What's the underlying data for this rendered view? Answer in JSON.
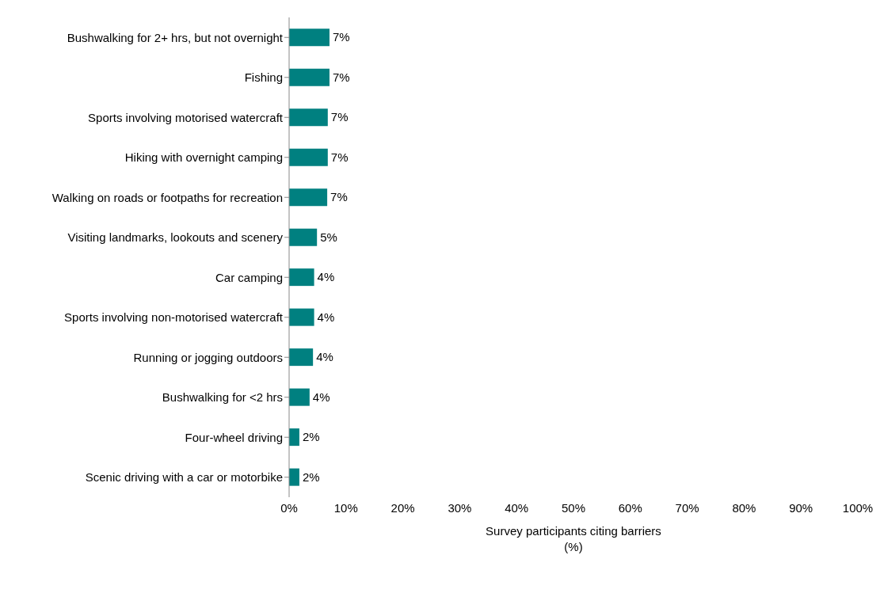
{
  "chart_data": {
    "type": "bar",
    "orientation": "horizontal",
    "categories": [
      "Bushwalking for 2+ hrs, but not overnight",
      "Fishing",
      "Sports involving motorised watercraft",
      "Hiking with overnight camping",
      "Walking on roads or footpaths for recreation",
      "Visiting landmarks, lookouts and scenery",
      "Car camping",
      "Sports involving non-motorised watercraft",
      "Running or jogging outdoors",
      "Bushwalking for <2 hrs",
      "Four-wheel driving",
      "Scenic driving with a car or motorbike"
    ],
    "values": [
      7.1,
      7.1,
      6.8,
      6.8,
      6.7,
      4.9,
      4.4,
      4.4,
      4.2,
      3.6,
      1.8,
      1.8
    ],
    "value_labels": [
      "7%",
      "7%",
      "7%",
      "7%",
      "7%",
      "5%",
      "4%",
      "4%",
      "4%",
      "4%",
      "2%",
      "2%"
    ],
    "color": "#008080",
    "xlim": [
      0,
      100
    ],
    "xticks": [
      {
        "value": 0,
        "label": "0%"
      },
      {
        "value": 10,
        "label": "10%"
      },
      {
        "value": 20,
        "label": "20%"
      },
      {
        "value": 30,
        "label": "30%"
      },
      {
        "value": 40,
        "label": "40%"
      },
      {
        "value": 50,
        "label": "50%"
      },
      {
        "value": 60,
        "label": "60%"
      },
      {
        "value": 70,
        "label": "70%"
      },
      {
        "value": 80,
        "label": "80%"
      },
      {
        "value": 90,
        "label": "90%"
      },
      {
        "value": 100,
        "label": "100%"
      }
    ],
    "xlabel": "Survey participants citing barriers\n(%)",
    "grid": false,
    "legend": false
  }
}
